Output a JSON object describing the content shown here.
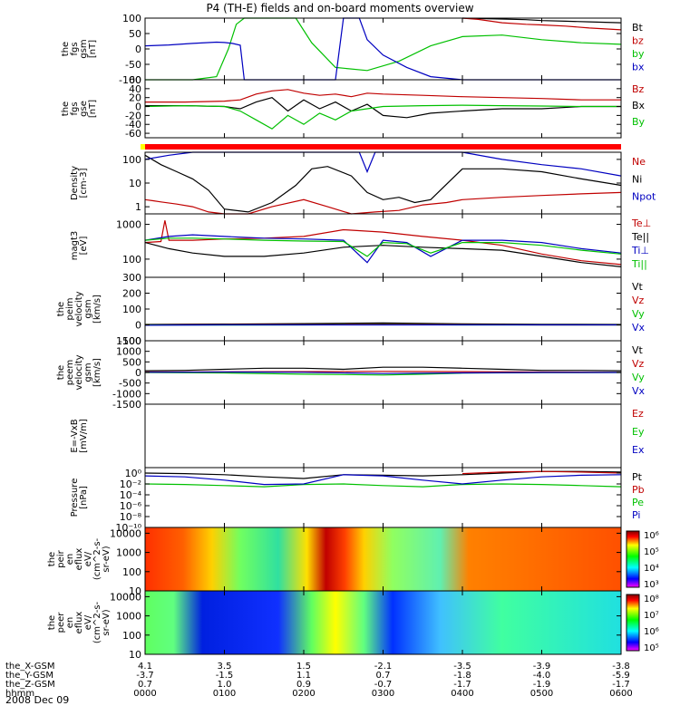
{
  "title": "P4 (TH-E) fields and on-board moments overview",
  "date_label": "2008 Dec 09",
  "colors": {
    "black": "#000000",
    "red": "#c00000",
    "green": "#00c000",
    "blue": "#0000c0",
    "bar_yellow": "#ffff00",
    "bar_red": "#ff0000"
  },
  "chart_data": [
    {
      "id": "fgs_gsm_nT",
      "type": "line",
      "ylabel": [
        "the",
        "fgs",
        "gsm",
        "[nT]"
      ],
      "ylim": [
        -100,
        100
      ],
      "yticks": [
        -100,
        -50,
        0,
        50,
        100
      ],
      "series": [
        {
          "name": "Bt",
          "color": "black",
          "x": [
            4.0,
            4.5,
            4.8,
            5.0,
            5.3,
            5.6,
            6.0
          ],
          "y": [
            100,
            97,
            95,
            92,
            90,
            88,
            85
          ]
        },
        {
          "name": "bz",
          "color": "red",
          "x": [
            4.0,
            4.2,
            4.5,
            4.8,
            5.0,
            5.3,
            5.6,
            6.0
          ],
          "y": [
            100,
            96,
            85,
            80,
            78,
            74,
            68,
            62
          ]
        },
        {
          "name": "by",
          "color": "green",
          "x": [
            0.0,
            0.3,
            0.6,
            0.9,
            1.05,
            1.15,
            1.25,
            1.9,
            2.1,
            2.4,
            2.8,
            3.2,
            3.6,
            4.0,
            4.5,
            5.0,
            5.5,
            6.0
          ],
          "y": [
            -100,
            -100,
            -100,
            -90,
            0,
            80,
            110,
            110,
            20,
            -60,
            -70,
            -40,
            10,
            40,
            45,
            30,
            20,
            15
          ]
        },
        {
          "name": "bx",
          "color": "blue",
          "x": [
            0.0,
            0.3,
            0.6,
            0.9,
            1.0,
            1.1,
            1.2,
            1.25,
            2.4,
            2.5,
            2.7,
            2.8,
            3.0,
            3.3,
            3.6,
            4.0,
            4.5,
            5.0,
            5.5,
            6.0
          ],
          "y": [
            10,
            13,
            18,
            22,
            21,
            18,
            12,
            -100,
            -100,
            110,
            110,
            30,
            -20,
            -60,
            -90,
            -100,
            -100,
            -100,
            -100,
            -100
          ]
        }
      ]
    },
    {
      "id": "fgs_gse_nT",
      "type": "line",
      "ylabel": [
        "the",
        "fgs",
        "gse",
        "[nT]"
      ],
      "ylim": [
        -70,
        60
      ],
      "yticks": [
        -60,
        -40,
        -20,
        0,
        20,
        40,
        60
      ],
      "series": [
        {
          "name": "Bz",
          "color": "red",
          "x": [
            0.0,
            0.5,
            1.0,
            1.2,
            1.4,
            1.6,
            1.8,
            2.0,
            2.2,
            2.4,
            2.6,
            2.8,
            3.0,
            3.5,
            4.0,
            4.5,
            5.0,
            5.5,
            6.0
          ],
          "y": [
            10,
            10,
            12,
            15,
            28,
            35,
            38,
            30,
            25,
            28,
            22,
            30,
            28,
            25,
            22,
            20,
            18,
            15,
            15
          ]
        },
        {
          "name": "Bx",
          "color": "black",
          "x": [
            0.0,
            0.5,
            1.0,
            1.2,
            1.4,
            1.6,
            1.8,
            2.0,
            2.2,
            2.4,
            2.6,
            2.8,
            3.0,
            3.3,
            3.6,
            4.0,
            4.5,
            5.0,
            5.5,
            6.0
          ],
          "y": [
            2,
            2,
            0,
            -5,
            10,
            20,
            -10,
            15,
            -5,
            10,
            -10,
            5,
            -20,
            -25,
            -15,
            -10,
            -5,
            -5,
            0,
            0
          ]
        },
        {
          "name": "By",
          "color": "green",
          "x": [
            0.0,
            0.5,
            1.0,
            1.2,
            1.4,
            1.6,
            1.8,
            2.0,
            2.2,
            2.4,
            2.6,
            2.8,
            3.0,
            3.5,
            4.0,
            4.5,
            5.0,
            5.5,
            6.0
          ],
          "y": [
            0,
            2,
            0,
            -10,
            -30,
            -50,
            -20,
            -40,
            -15,
            -30,
            -10,
            -5,
            0,
            2,
            3,
            2,
            1,
            0,
            0
          ]
        }
      ]
    },
    {
      "id": "density",
      "type": "line",
      "yscale": "log",
      "ylabel": [
        "Density",
        "[cm-3]"
      ],
      "ylim": [
        0.5,
        200
      ],
      "yticks": [
        1,
        10,
        100
      ],
      "series": [
        {
          "name": "Ne",
          "color": "red",
          "x": [
            0.0,
            0.1,
            0.2,
            0.4,
            0.6,
            0.8,
            1.0,
            1.3,
            1.6,
            2.0,
            2.3,
            2.6,
            2.9,
            3.2,
            3.5,
            3.8,
            4.0,
            4.5,
            5.0,
            5.5,
            6.0
          ],
          "y": [
            2,
            1.8,
            1.6,
            1.3,
            1.0,
            0.6,
            0.5,
            0.5,
            1.0,
            2.0,
            1.0,
            0.5,
            0.6,
            0.7,
            1.2,
            1.5,
            2.0,
            2.5,
            3.0,
            3.5,
            4.0
          ]
        },
        {
          "name": "Ni",
          "color": "black",
          "x": [
            0.0,
            0.2,
            0.4,
            0.6,
            0.8,
            1.0,
            1.3,
            1.6,
            1.9,
            2.1,
            2.3,
            2.6,
            2.8,
            3.0,
            3.2,
            3.4,
            3.6,
            4.0,
            4.5,
            5.0,
            5.5,
            6.0
          ],
          "y": [
            150,
            60,
            30,
            15,
            5,
            0.8,
            0.6,
            1.5,
            8,
            40,
            50,
            20,
            4,
            2,
            2.5,
            1.5,
            2,
            40,
            40,
            30,
            15,
            8
          ]
        },
        {
          "name": "Npot",
          "color": "blue",
          "x": [
            0.0,
            0.3,
            0.6,
            2.7,
            2.8,
            2.9,
            3.0,
            3.5,
            4.0,
            4.5,
            5.0,
            5.5,
            6.0
          ],
          "y": [
            100,
            150,
            200,
            200,
            30,
            200,
            200,
            200,
            200,
            100,
            60,
            40,
            20
          ]
        }
      ]
    },
    {
      "id": "temperature",
      "type": "line",
      "yscale": "log",
      "ylabel": [
        "magt3",
        "[eV]"
      ],
      "ylim": [
        30,
        2000
      ],
      "yticks": [
        100,
        1000
      ],
      "series": [
        {
          "name": "Te⊥",
          "color": "red",
          "x": [
            0.0,
            0.2,
            0.25,
            0.3,
            0.6,
            1.0,
            1.5,
            2.0,
            2.5,
            3.0,
            3.5,
            4.0,
            4.5,
            5.0,
            5.5,
            6.0
          ],
          "y": [
            300,
            320,
            1300,
            350,
            350,
            380,
            400,
            450,
            700,
            600,
            450,
            350,
            250,
            140,
            90,
            70
          ]
        },
        {
          "name": "Te||",
          "color": "black",
          "x": [
            0.0,
            0.3,
            0.6,
            1.0,
            1.5,
            2.0,
            2.5,
            3.0,
            3.5,
            4.0,
            4.5,
            5.0,
            5.5,
            6.0
          ],
          "y": [
            300,
            200,
            150,
            120,
            120,
            150,
            220,
            250,
            220,
            200,
            180,
            120,
            80,
            60
          ]
        },
        {
          "name": "Ti⊥",
          "color": "blue",
          "x": [
            0.0,
            0.3,
            0.6,
            1.0,
            1.5,
            2.0,
            2.5,
            2.8,
            3.0,
            3.3,
            3.6,
            4.0,
            4.5,
            5.0,
            5.5,
            6.0
          ],
          "y": [
            350,
            450,
            500,
            450,
            400,
            380,
            350,
            80,
            350,
            300,
            120,
            350,
            350,
            300,
            200,
            150
          ]
        },
        {
          "name": "Ti||",
          "color": "green",
          "x": [
            0.0,
            0.3,
            0.6,
            1.0,
            1.5,
            2.0,
            2.5,
            2.8,
            3.0,
            3.3,
            3.6,
            4.0,
            4.5,
            5.0,
            5.5,
            6.0
          ],
          "y": [
            350,
            400,
            400,
            380,
            350,
            330,
            320,
            120,
            300,
            280,
            150,
            300,
            300,
            250,
            180,
            140
          ]
        }
      ]
    },
    {
      "id": "peim_velocity",
      "type": "line",
      "ylabel": [
        "the",
        "peim",
        "velocity",
        "gsm",
        "[km/s]"
      ],
      "ylim": [
        -100,
        300
      ],
      "yticks": [
        -100,
        0,
        100,
        200,
        300
      ],
      "series": [
        {
          "name": "Vt",
          "color": "black",
          "x": [
            0.0,
            1.0,
            2.0,
            3.0,
            4.0,
            5.0,
            6.0
          ],
          "y": [
            3,
            5,
            8,
            12,
            6,
            4,
            3
          ]
        },
        {
          "name": "Vz",
          "color": "red",
          "x": [
            0.0,
            1.0,
            2.0,
            3.0,
            4.0,
            5.0,
            6.0
          ],
          "y": [
            0,
            1,
            2,
            5,
            2,
            0,
            0
          ]
        },
        {
          "name": "Vy",
          "color": "green",
          "x": [
            0.0,
            1.0,
            2.0,
            3.0,
            4.0,
            5.0,
            6.0
          ],
          "y": [
            0,
            -1,
            0,
            2,
            0,
            0,
            0
          ]
        },
        {
          "name": "Vx",
          "color": "blue",
          "x": [
            0.0,
            1.0,
            2.0,
            3.0,
            4.0,
            5.0,
            6.0
          ],
          "y": [
            -2,
            0,
            0,
            0,
            0,
            0,
            0
          ]
        }
      ]
    },
    {
      "id": "peem_velocity",
      "type": "line",
      "ylabel": [
        "the",
        "peem",
        "velocity",
        "gsm",
        "[km/s]"
      ],
      "ylim": [
        -1500,
        1500
      ],
      "yticks": [
        -1500,
        -1000,
        -500,
        0,
        500,
        1000,
        1500
      ],
      "series": [
        {
          "name": "Vt",
          "color": "black",
          "x": [
            0.0,
            0.5,
            1.0,
            1.5,
            2.0,
            2.5,
            3.0,
            3.5,
            4.0,
            4.5,
            5.0,
            5.5,
            6.0
          ],
          "y": [
            80,
            100,
            150,
            200,
            200,
            150,
            250,
            250,
            200,
            150,
            100,
            100,
            80
          ]
        },
        {
          "name": "Vz",
          "color": "red",
          "x": [
            0.0,
            1.0,
            2.0,
            3.0,
            4.0,
            5.0,
            6.0
          ],
          "y": [
            20,
            30,
            40,
            50,
            40,
            20,
            10
          ]
        },
        {
          "name": "Vy",
          "color": "green",
          "x": [
            0.0,
            1.0,
            2.0,
            2.5,
            3.0,
            3.5,
            4.0,
            5.0,
            6.0
          ],
          "y": [
            0,
            -20,
            -80,
            -100,
            -120,
            -80,
            -30,
            -10,
            0
          ]
        },
        {
          "name": "Vx",
          "color": "blue",
          "x": [
            0.0,
            1.0,
            2.0,
            3.0,
            4.0,
            5.0,
            6.0
          ],
          "y": [
            10,
            20,
            10,
            -50,
            -20,
            0,
            0
          ]
        }
      ]
    },
    {
      "id": "e_vxb",
      "type": "line",
      "ylabel": [
        "E=-VxB",
        "[mV/m]"
      ],
      "ylim": [
        0,
        1
      ],
      "yticks": [],
      "series": [
        {
          "name": "Ez",
          "color": "red",
          "x": [],
          "y": []
        },
        {
          "name": "Ey",
          "color": "green",
          "x": [],
          "y": []
        },
        {
          "name": "Ex",
          "color": "blue",
          "x": [],
          "y": []
        }
      ]
    },
    {
      "id": "pressure",
      "type": "line",
      "yscale": "log",
      "ylabel": [
        "Pressure",
        "[nPa]"
      ],
      "ylim": [
        1e-10,
        10
      ],
      "yticks": [
        1e-10,
        1e-08,
        1e-06,
        0.0001,
        0.01,
        1
      ],
      "ytick_labels": [
        "10⁻¹⁰",
        "10⁻⁸",
        "10⁻⁶",
        "10⁻⁴",
        "10⁻²",
        "10⁰"
      ],
      "series": [
        {
          "name": "Pt",
          "color": "black",
          "x": [
            0.0,
            0.5,
            1.0,
            1.5,
            2.0,
            2.5,
            3.0,
            3.5,
            4.0,
            4.5,
            5.0,
            5.5,
            6.0
          ],
          "y": [
            1,
            0.8,
            0.5,
            0.2,
            0.1,
            0.5,
            0.4,
            0.3,
            0.5,
            1,
            2,
            2,
            1.5
          ]
        },
        {
          "name": "Pb",
          "color": "red",
          "x": [
            4.0,
            4.5,
            5.0,
            5.5,
            6.0
          ],
          "y": [
            0.8,
            1.5,
            2,
            1.5,
            1
          ]
        },
        {
          "name": "Pe",
          "color": "green",
          "x": [
            0.0,
            0.5,
            1.0,
            1.5,
            2.0,
            2.5,
            3.0,
            3.5,
            4.0,
            4.5,
            5.0,
            5.5,
            6.0
          ],
          "y": [
            0.01,
            0.008,
            0.005,
            0.003,
            0.008,
            0.01,
            0.005,
            0.003,
            0.008,
            0.01,
            0.008,
            0.005,
            0.003
          ]
        },
        {
          "name": "Pi",
          "color": "blue",
          "x": [
            0.0,
            0.5,
            1.0,
            1.5,
            2.0,
            2.5,
            3.0,
            3.5,
            4.0,
            4.5,
            5.0,
            5.5,
            6.0
          ],
          "y": [
            0.3,
            0.2,
            0.05,
            0.008,
            0.01,
            0.5,
            0.3,
            0.05,
            0.01,
            0.05,
            0.2,
            0.4,
            0.5
          ]
        }
      ]
    },
    {
      "id": "peir_eflux",
      "type": "heatmap",
      "yscale": "log",
      "ylabel": [
        "the",
        "peir",
        "en",
        "eflux",
        "eV/",
        "(cm^2-s-",
        "sr-eV)"
      ],
      "ylim": [
        10,
        20000
      ],
      "yticks": [
        10,
        100,
        1000,
        10000
      ],
      "zlim": [
        1000,
        5000000
      ],
      "colorbar_ticks": [
        "10³",
        "10⁴",
        "10⁵",
        "10⁶"
      ]
    },
    {
      "id": "peer_eflux",
      "type": "heatmap",
      "yscale": "log",
      "ylabel": [
        "the",
        "peer",
        "en",
        "eflux",
        "eV/",
        "(cm^2-s-",
        "sr-eV)"
      ],
      "ylim": [
        10,
        20000
      ],
      "yticks": [
        10,
        100,
        1000,
        10000
      ],
      "zlim": [
        50000,
        200000000
      ],
      "colorbar_ticks": [
        "10⁵",
        "10⁶",
        "10⁷",
        "10⁸"
      ]
    }
  ],
  "x_axis": {
    "hours": [
      0,
      1,
      2,
      3,
      4,
      5,
      6
    ],
    "rows": [
      {
        "label": "the_X-GSM",
        "values": [
          "4.1",
          "3.5",
          "1.5",
          "-2.1",
          "-3.5",
          "-3.9",
          "-3.8"
        ]
      },
      {
        "label": "the_Y-GSM",
        "values": [
          "-3.7",
          "-1.5",
          "1.1",
          "0.7",
          "-1.8",
          "-4.0",
          "-5.9"
        ]
      },
      {
        "label": "the_Z-GSM",
        "values": [
          "0.7",
          "1.0",
          "0.9",
          "-0.7",
          "-1.7",
          "-1.9",
          "-1.7"
        ]
      },
      {
        "label": "hhmm",
        "values": [
          "0000",
          "0100",
          "0200",
          "0300",
          "0400",
          "0500",
          "0600"
        ]
      }
    ]
  }
}
